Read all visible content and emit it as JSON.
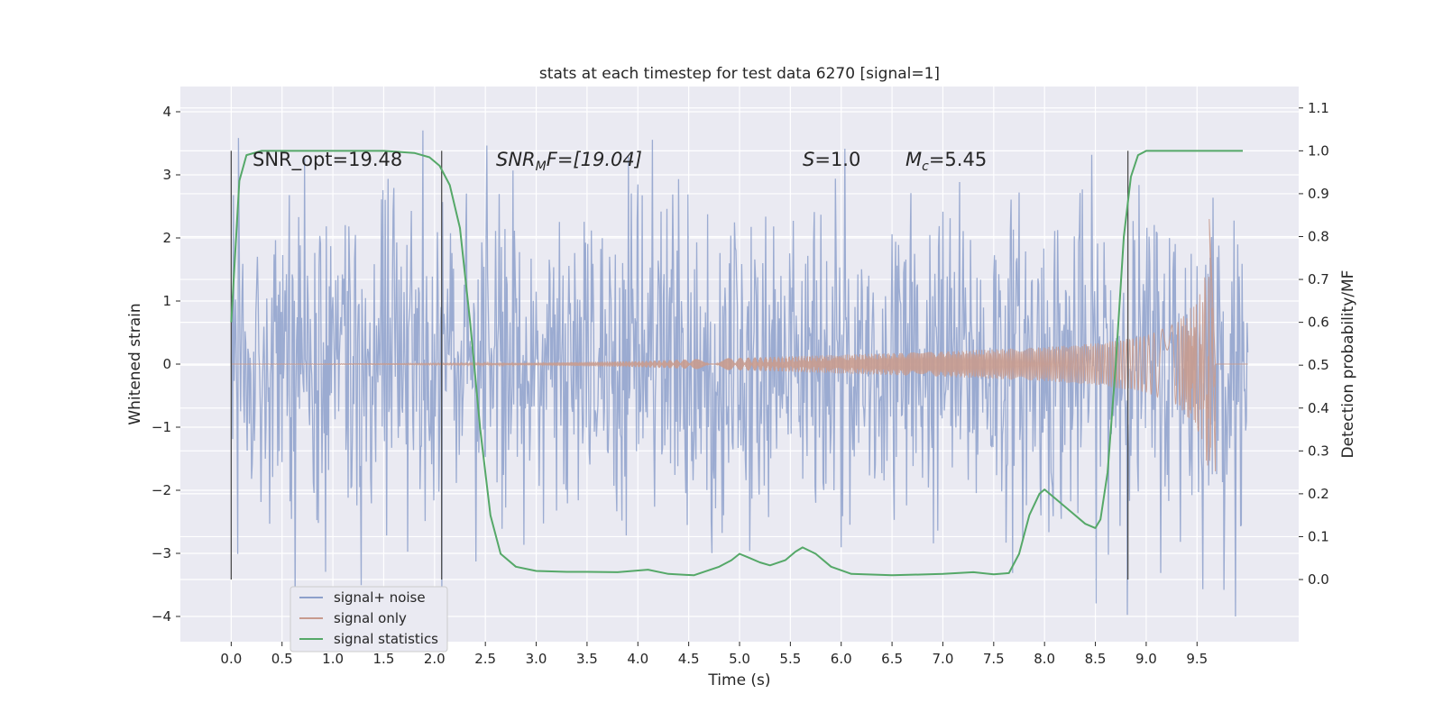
{
  "chart_data": {
    "type": "line",
    "title": "stats at each timestep for test data 6270 [signal=1]",
    "xlabel": "Time (s)",
    "ylabel": "Whitened strain",
    "ylabel_right": "Detection probability/MF",
    "xlim": [
      -0.5,
      10.5
    ],
    "ylim": [
      -4.4,
      4.4
    ],
    "ylim_right": [
      -0.145,
      1.15
    ],
    "x_ticks": [
      0.0,
      0.5,
      1.0,
      1.5,
      2.0,
      2.5,
      3.0,
      3.5,
      4.0,
      4.5,
      5.0,
      5.5,
      6.0,
      6.5,
      7.0,
      7.5,
      8.0,
      8.5,
      9.0,
      9.5
    ],
    "x_tick_labels": [
      "0.0",
      "0.5",
      "1.0",
      "1.5",
      "2.0",
      "2.5",
      "3.0",
      "3.5",
      "4.0",
      "4.5",
      "5.0",
      "5.5",
      "6.0",
      "6.5",
      "7.0",
      "7.5",
      "8.0",
      "8.5",
      "9.0",
      "9.5"
    ],
    "y_ticks": [
      -4,
      -3,
      -2,
      -1,
      0,
      1,
      2,
      3,
      4
    ],
    "y_tick_labels": [
      "−4",
      "−3",
      "−2",
      "−1",
      "0",
      "1",
      "2",
      "3",
      "4"
    ],
    "y_right_ticks": [
      0.0,
      0.1,
      0.2,
      0.3,
      0.4,
      0.5,
      0.6,
      0.7,
      0.8,
      0.9,
      1.0,
      1.1
    ],
    "y_right_tick_labels": [
      "0.0",
      "0.1",
      "0.2",
      "0.3",
      "0.4",
      "0.5",
      "0.6",
      "0.7",
      "0.8",
      "0.9",
      "1.0",
      "1.1"
    ],
    "grid": true,
    "legend_position": "lower-left",
    "annotations": {
      "snr_opt": "SNR_opt=19.48",
      "snr_mf_prefix": "SNR",
      "snr_mf_sub": "M",
      "snr_mf_suffix": "F=[19.04]",
      "s_var": "S",
      "s_value": "=1.0",
      "mc_var": "M",
      "mc_sub": "c",
      "mc_value": "=5.45"
    },
    "vertical_markers": [
      0.0,
      2.07,
      8.82
    ],
    "marker_range_right": [
      0.0,
      1.0
    ],
    "series": [
      {
        "name": "signal+ noise",
        "axis": "left",
        "kind": "noise",
        "x_range": [
          0.0,
          10.0
        ],
        "typical_amplitude": [
          -2.3,
          2.3
        ],
        "extremes": [
          -4.0,
          4.1
        ],
        "color": "#8da0cb"
      },
      {
        "name": "signal only",
        "axis": "left",
        "kind": "chirp",
        "x": [
          0.0,
          3.0,
          4.0,
          5.0,
          6.0,
          7.0,
          8.0,
          8.5,
          9.0,
          9.3,
          9.5,
          9.62,
          9.68
        ],
        "envelope": [
          0.0,
          0.02,
          0.05,
          0.1,
          0.15,
          0.2,
          0.27,
          0.33,
          0.45,
          0.65,
          1.0,
          1.7,
          0.0
        ],
        "peak": [
          2.3,
          -1.7
        ],
        "color": "#c89b8e"
      },
      {
        "name": "signal statistics",
        "axis": "right",
        "kind": "line",
        "x": [
          0.0,
          0.08,
          0.15,
          0.3,
          0.5,
          1.0,
          1.5,
          1.8,
          1.95,
          2.05,
          2.15,
          2.25,
          2.35,
          2.45,
          2.55,
          2.65,
          2.8,
          3.0,
          3.3,
          3.5,
          3.8,
          3.95,
          4.1,
          4.3,
          4.55,
          4.8,
          4.92,
          5.0,
          5.1,
          5.2,
          5.3,
          5.45,
          5.55,
          5.62,
          5.75,
          5.9,
          6.1,
          6.5,
          7.0,
          7.3,
          7.5,
          7.65,
          7.75,
          7.85,
          7.95,
          8.0,
          8.1,
          8.25,
          8.4,
          8.5,
          8.55,
          8.62,
          8.7,
          8.78,
          8.85,
          8.92,
          9.0,
          9.1,
          9.3,
          9.6,
          9.95
        ],
        "y": [
          0.6,
          0.93,
          0.99,
          1.0,
          1.0,
          1.0,
          1.0,
          0.995,
          0.985,
          0.965,
          0.92,
          0.82,
          0.6,
          0.35,
          0.15,
          0.06,
          0.03,
          0.02,
          0.018,
          0.018,
          0.017,
          0.02,
          0.023,
          0.013,
          0.01,
          0.03,
          0.045,
          0.06,
          0.05,
          0.04,
          0.033,
          0.045,
          0.065,
          0.075,
          0.06,
          0.03,
          0.013,
          0.01,
          0.013,
          0.017,
          0.012,
          0.015,
          0.06,
          0.15,
          0.2,
          0.21,
          0.19,
          0.16,
          0.13,
          0.12,
          0.14,
          0.25,
          0.5,
          0.8,
          0.94,
          0.99,
          1.0,
          1.0,
          1.0,
          1.0,
          1.0
        ],
        "color": "#55a868"
      }
    ]
  },
  "colors": {
    "plot_background": "#eaeaf2",
    "grid": "#ffffff",
    "noise": "#8da0cb",
    "signal": "#c89b8e",
    "statistics": "#55a868",
    "markers": "#4d4d4d"
  }
}
